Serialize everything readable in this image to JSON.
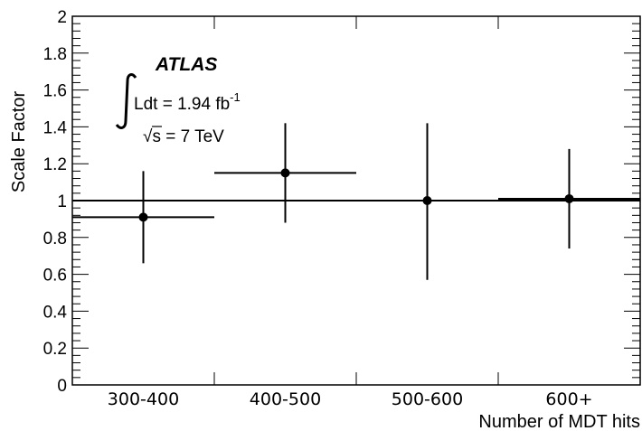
{
  "chart_data": {
    "type": "scatter",
    "title": "",
    "xlabel": "Number of MDT hits",
    "ylabel": "Scale Factor",
    "categories": [
      "300-400",
      "400-500",
      "500-600",
      "600+"
    ],
    "ylim": [
      0,
      2
    ],
    "yticks": [
      "0",
      "0.2",
      "0.4",
      "0.6",
      "0.8",
      "1",
      "1.2",
      "1.4",
      "1.6",
      "1.8",
      "2"
    ],
    "points": [
      {
        "category": "300-400",
        "value": 0.91,
        "err_low": 0.25,
        "err_high": 0.25
      },
      {
        "category": "400-500",
        "value": 1.15,
        "err_low": 0.27,
        "err_high": 0.27
      },
      {
        "category": "500-600",
        "value": 1.0,
        "err_low": 0.43,
        "err_high": 0.42
      },
      {
        "category": "600+",
        "value": 1.01,
        "err_low": 0.27,
        "err_high": 0.27
      }
    ],
    "reference_line": 1,
    "grid": false,
    "annotations": {
      "experiment": "ATLAS",
      "luminosity": "Ldt = 1.94 fb",
      "luminosity_exp": "-1",
      "energy_root": "√",
      "energy_var": "s",
      "energy": " = 7 TeV"
    }
  }
}
